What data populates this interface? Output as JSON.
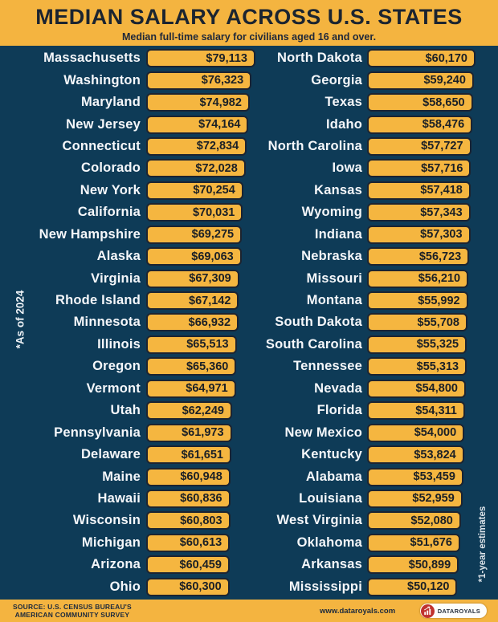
{
  "header": {
    "title": "MEDIAN SALARY ACROSS U.S. STATES",
    "subtitle": "Median full-time salary for civilians aged 16 and over."
  },
  "notes": {
    "left": "*As of 2024",
    "right": "*1-year estimates"
  },
  "chart_data": {
    "type": "bar",
    "title": "MEDIAN SALARY ACROSS U.S. STATES",
    "subtitle": "Median full-time salary for civilians aged 16 and over.",
    "unit": "USD",
    "layout": "two-column horizontal bars, each column scaled to its own max value, bars anchored left",
    "columns": [
      {
        "max_value": 79113,
        "rows": [
          {
            "state": "Massachusetts",
            "salary": "$79,113",
            "value": 79113
          },
          {
            "state": "Washington",
            "salary": "$76,323",
            "value": 76323
          },
          {
            "state": "Maryland",
            "salary": "$74,982",
            "value": 74982
          },
          {
            "state": "New Jersey",
            "salary": "$74,164",
            "value": 74164
          },
          {
            "state": "Connecticut",
            "salary": "$72,834",
            "value": 72834
          },
          {
            "state": "Colorado",
            "salary": "$72,028",
            "value": 72028
          },
          {
            "state": "New York",
            "salary": "$70,254",
            "value": 70254
          },
          {
            "state": "California",
            "salary": "$70,031",
            "value": 70031
          },
          {
            "state": "New Hampshire",
            "salary": "$69,275",
            "value": 69275
          },
          {
            "state": "Alaska",
            "salary": "$69,063",
            "value": 69063
          },
          {
            "state": "Virginia",
            "salary": "$67,309",
            "value": 67309
          },
          {
            "state": "Rhode Island",
            "salary": "$67,142",
            "value": 67142
          },
          {
            "state": "Minnesota",
            "salary": "$66,932",
            "value": 66932
          },
          {
            "state": "Illinois",
            "salary": "$65,513",
            "value": 65513
          },
          {
            "state": "Oregon",
            "salary": "$65,360",
            "value": 65360
          },
          {
            "state": "Vermont",
            "salary": "$64,971",
            "value": 64971
          },
          {
            "state": "Utah",
            "salary": "$62,249",
            "value": 62249
          },
          {
            "state": "Pennsylvania",
            "salary": "$61,973",
            "value": 61973
          },
          {
            "state": "Delaware",
            "salary": "$61,651",
            "value": 61651
          },
          {
            "state": "Maine",
            "salary": "$60,948",
            "value": 60948
          },
          {
            "state": "Hawaii",
            "salary": "$60,836",
            "value": 60836
          },
          {
            "state": "Wisconsin",
            "salary": "$60,803",
            "value": 60803
          },
          {
            "state": "Michigan",
            "salary": "$60,613",
            "value": 60613
          },
          {
            "state": "Arizona",
            "salary": "$60,459",
            "value": 60459
          },
          {
            "state": "Ohio",
            "salary": "$60,300",
            "value": 60300
          }
        ]
      },
      {
        "max_value": 60170,
        "rows": [
          {
            "state": "North Dakota",
            "salary": "$60,170",
            "value": 60170
          },
          {
            "state": "Georgia",
            "salary": "$59,240",
            "value": 59240
          },
          {
            "state": "Texas",
            "salary": "$58,650",
            "value": 58650
          },
          {
            "state": "Idaho",
            "salary": "$58,476",
            "value": 58476
          },
          {
            "state": "North Carolina",
            "salary": "$57,727",
            "value": 57727
          },
          {
            "state": "Iowa",
            "salary": "$57,716",
            "value": 57716
          },
          {
            "state": "Kansas",
            "salary": "$57,418",
            "value": 57418
          },
          {
            "state": "Wyoming",
            "salary": "$57,343",
            "value": 57343
          },
          {
            "state": "Indiana",
            "salary": "$57,303",
            "value": 57303
          },
          {
            "state": "Nebraska",
            "salary": "$56,723",
            "value": 56723
          },
          {
            "state": "Missouri",
            "salary": "$56,210",
            "value": 56210
          },
          {
            "state": "Montana",
            "salary": "$55,992",
            "value": 55992
          },
          {
            "state": "South Dakota",
            "salary": "$55,708",
            "value": 55708
          },
          {
            "state": "South Carolina",
            "salary": "$55,325",
            "value": 55325
          },
          {
            "state": "Tennessee",
            "salary": "$55,313",
            "value": 55313
          },
          {
            "state": "Nevada",
            "salary": "$54,800",
            "value": 54800
          },
          {
            "state": "Florida",
            "salary": "$54,311",
            "value": 54311
          },
          {
            "state": "New Mexico",
            "salary": "$54,000",
            "value": 54000
          },
          {
            "state": "Kentucky",
            "salary": "$53,824",
            "value": 53824
          },
          {
            "state": "Alabama",
            "salary": "$53,459",
            "value": 53459
          },
          {
            "state": "Louisiana",
            "salary": "$52,959",
            "value": 52959
          },
          {
            "state": "West Virginia",
            "salary": "$52,080",
            "value": 52080
          },
          {
            "state": "Oklahoma",
            "salary": "$51,676",
            "value": 51676
          },
          {
            "state": "Arkansas",
            "salary": "$50,899",
            "value": 50899
          },
          {
            "state": "Mississippi",
            "salary": "$50,120",
            "value": 50120
          }
        ]
      }
    ]
  },
  "footer": {
    "source_line1": "SOURCE: U.S. CENSUS BUREAU'S",
    "source_line2": "AMERICAN COMMUNITY SURVEY",
    "website": "www.dataroyals.com",
    "brand": "DATAROYALS"
  },
  "colors": {
    "background": "#0E3B57",
    "gold": "#F4B440",
    "bar_border": "#1C2431",
    "text_dark": "#1B2430",
    "text_light": "#F5F7FA",
    "logo_red": "#C0322E"
  }
}
